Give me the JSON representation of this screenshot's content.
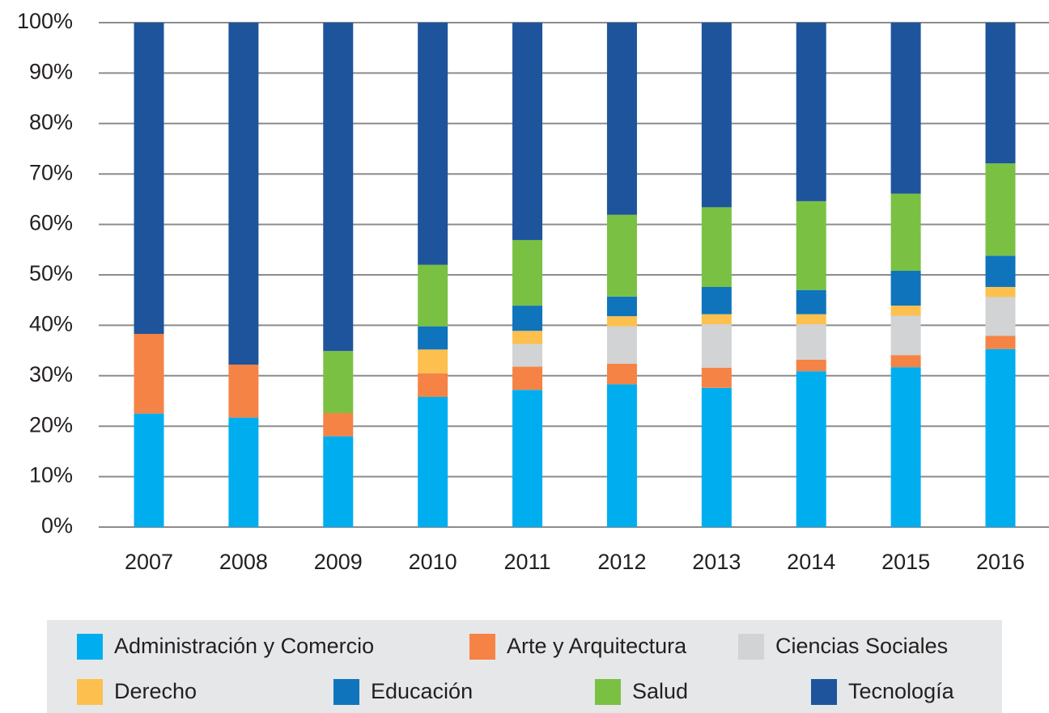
{
  "chart_data": {
    "type": "stacked-bar",
    "categories": [
      "2007",
      "2008",
      "2009",
      "2010",
      "2011",
      "2012",
      "2013",
      "2014",
      "2015",
      "2016"
    ],
    "series": [
      {
        "name": "Administración y Comercio",
        "color": "#00aeef",
        "values": [
          22.5,
          21.7,
          18,
          25.8,
          27.2,
          28.3,
          27.6,
          30.9,
          31.7,
          35.3
        ]
      },
      {
        "name": "Arte y Arquitectura",
        "color": "#f58345",
        "values": [
          15.8,
          10.5,
          4.6,
          4.7,
          4.6,
          4.1,
          4,
          2.3,
          2.4,
          2.6
        ]
      },
      {
        "name": "Ciencias Sociales",
        "color": "#d1d3d4",
        "values": [
          0,
          0,
          0,
          0,
          4.5,
          7.4,
          8.6,
          7,
          7.8,
          7.7
        ]
      },
      {
        "name": "Derecho",
        "color": "#fdc04e",
        "values": [
          0,
          0,
          0,
          4.7,
          2.6,
          2,
          2,
          2,
          2,
          2
        ]
      },
      {
        "name": "Educación",
        "color": "#1074bc",
        "values": [
          0,
          0,
          0,
          4.6,
          5,
          3.9,
          5.4,
          4.8,
          6.9,
          6.2
        ]
      },
      {
        "name": "Salud",
        "color": "#7ac143",
        "values": [
          0,
          0,
          12.3,
          12.2,
          13,
          16.2,
          15.8,
          17.6,
          15.3,
          18.3
        ]
      },
      {
        "name": "Tecnología",
        "color": "#1e549c",
        "values": [
          61.7,
          67.8,
          65.1,
          48,
          43.1,
          38.1,
          36.6,
          35.4,
          33.9,
          27.9
        ]
      }
    ],
    "ylim": [
      0,
      100
    ],
    "yticks": [
      {
        "value": 0,
        "label": "0%"
      },
      {
        "value": 10,
        "label": "10%"
      },
      {
        "value": 20,
        "label": "20%"
      },
      {
        "value": 30,
        "label": "30%"
      },
      {
        "value": 40,
        "label": "40%"
      },
      {
        "value": 50,
        "label": "50%"
      },
      {
        "value": 60,
        "label": "60%"
      },
      {
        "value": 70,
        "label": "70%"
      },
      {
        "value": 80,
        "label": "80%"
      },
      {
        "value": 90,
        "label": "90%"
      },
      {
        "value": 100,
        "label": "100%"
      }
    ],
    "grid": true,
    "legend": "bottom"
  }
}
